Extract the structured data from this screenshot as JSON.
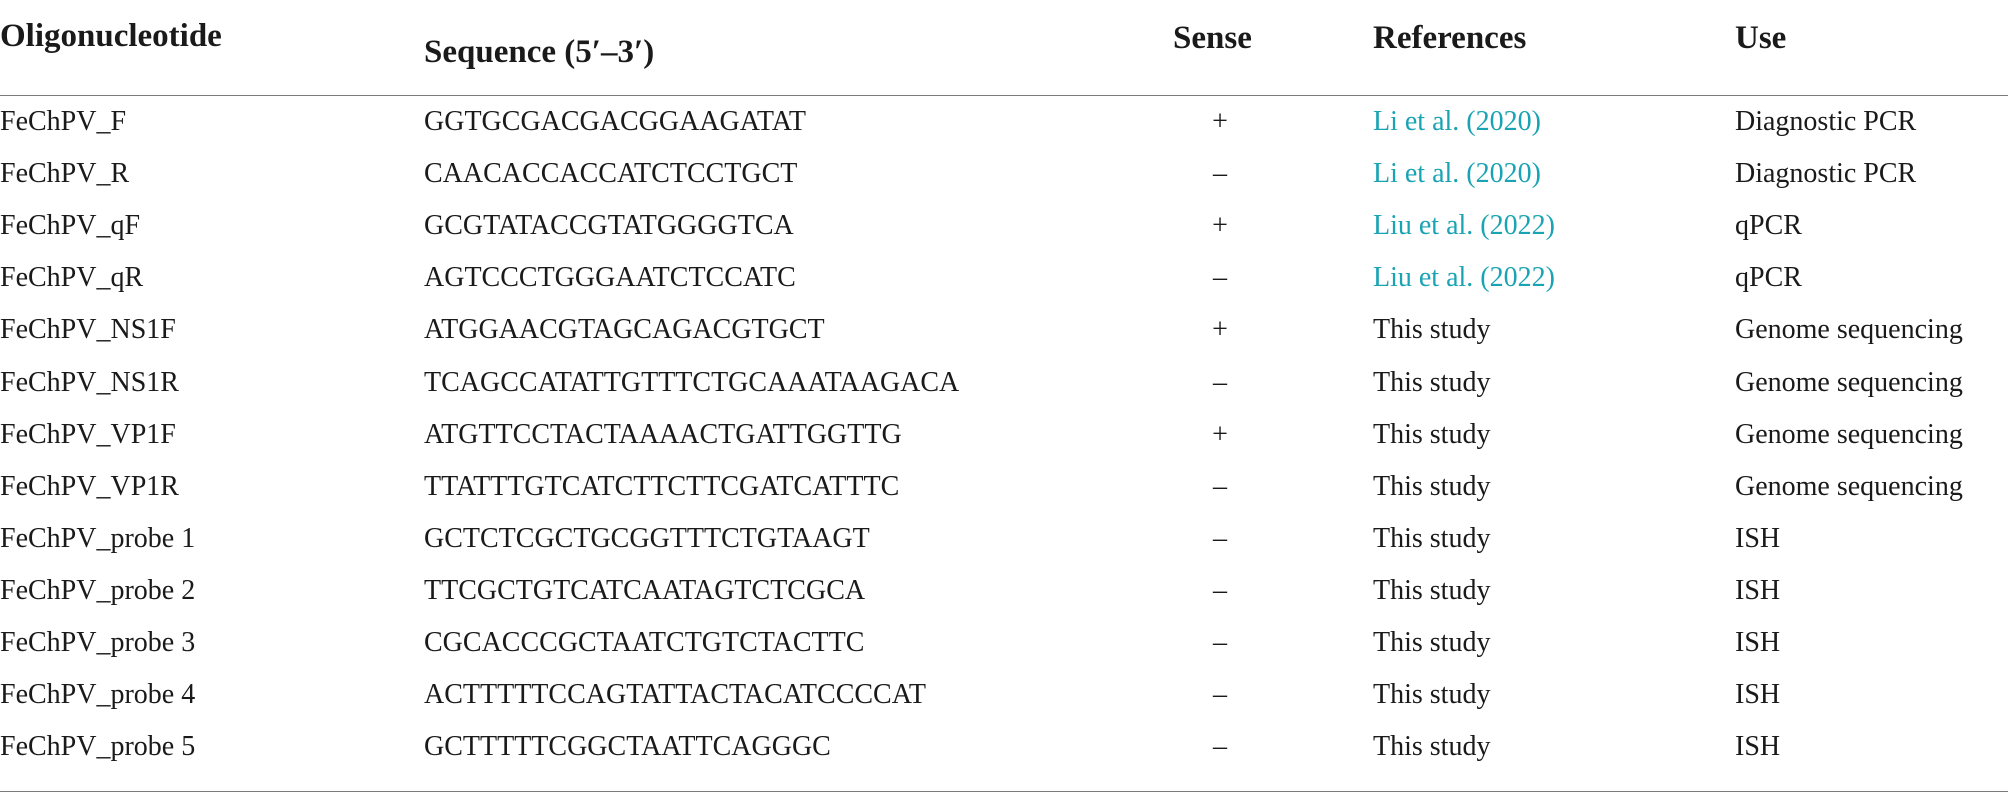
{
  "table": {
    "headers": {
      "oligonucleotide": "Oligonucleotide",
      "sequence": "Sequence (5′–3′)",
      "sense": "Sense",
      "references": "References",
      "use": "Use"
    },
    "rows": [
      {
        "oligo": "FeChPV_F",
        "sequence": "GGTGCGACGACGGAAGATAT",
        "sense": "+",
        "reference": "Li et al. (2020)",
        "reference_is_link": true,
        "use": "Diagnostic PCR"
      },
      {
        "oligo": "FeChPV_R",
        "sequence": "CAACACCACCATCTCCTGCT",
        "sense": "–",
        "reference": "Li et al. (2020)",
        "reference_is_link": true,
        "use": "Diagnostic PCR"
      },
      {
        "oligo": "FeChPV_qF",
        "sequence": "GCGTATACCGTATGGGGTCA",
        "sense": "+",
        "reference": "Liu et al. (2022)",
        "reference_is_link": true,
        "use": "qPCR"
      },
      {
        "oligo": "FeChPV_qR",
        "sequence": "AGTCCCTGGGAATCTCCATC",
        "sense": "–",
        "reference": "Liu et al. (2022)",
        "reference_is_link": true,
        "use": "qPCR"
      },
      {
        "oligo": "FeChPV_NS1F",
        "sequence": "ATGGAACGTAGCAGACGTGCT",
        "sense": "+",
        "reference": "This study",
        "reference_is_link": false,
        "use": "Genome sequencing"
      },
      {
        "oligo": "FeChPV_NS1R",
        "sequence": "TCAGCCATATTGTTTCTGCAAATAAGACA",
        "sense": "–",
        "reference": "This study",
        "reference_is_link": false,
        "use": "Genome sequencing"
      },
      {
        "oligo": "FeChPV_VP1F",
        "sequence": "ATGTTCCTACTAAAACTGATTGGTTG",
        "sense": "+",
        "reference": "This study",
        "reference_is_link": false,
        "use": "Genome sequencing"
      },
      {
        "oligo": "FeChPV_VP1R",
        "sequence": "TTATTTGTCATCTTCTTCGATCATTTC",
        "sense": "–",
        "reference": "This study",
        "reference_is_link": false,
        "use": "Genome sequencing"
      },
      {
        "oligo": "FeChPV_probe 1",
        "sequence": "GCTCTCGCTGCGGTTTCTGTAAGT",
        "sense": "–",
        "reference": "This study",
        "reference_is_link": false,
        "use": "ISH"
      },
      {
        "oligo": "FeChPV_probe 2",
        "sequence": "TTCGCTGTCATCAATAGTCTCGCA",
        "sense": "–",
        "reference": "This study",
        "reference_is_link": false,
        "use": "ISH"
      },
      {
        "oligo": "FeChPV_probe 3",
        "sequence": "CGCACCCGCTAATCTGTCTACTTC",
        "sense": "–",
        "reference": "This study",
        "reference_is_link": false,
        "use": "ISH"
      },
      {
        "oligo": "FeChPV_probe 4",
        "sequence": "ACTTTTTCCAGTATTACTACATCCCCAT",
        "sense": "–",
        "reference": "This study",
        "reference_is_link": false,
        "use": "ISH"
      },
      {
        "oligo": "FeChPV_probe 5",
        "sequence": "GCTTTTTCGGCTAATTCAGGGC",
        "sense": "–",
        "reference": "This study",
        "reference_is_link": false,
        "use": "ISH"
      }
    ],
    "colors": {
      "text": "#1a1a1a",
      "link": "#1aa3b3",
      "rule": "#7a7a7a"
    }
  }
}
